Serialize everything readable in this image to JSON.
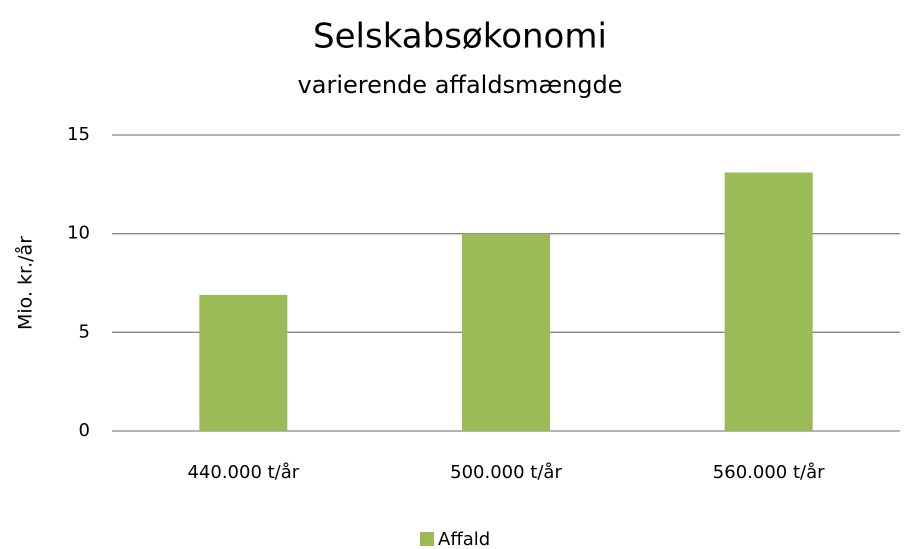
{
  "chart_data": {
    "type": "bar",
    "title": "Selskabsøkonomi",
    "subtitle": "varierende affaldsmængde",
    "y_label": "Mio. kr./år",
    "categories": [
      "440.000 t/år",
      "500.000 t/år",
      "560.000 t/år"
    ],
    "series": [
      {
        "name": "Affald",
        "color": "#9bbb59",
        "values": [
          6.9,
          10.0,
          13.1
        ]
      }
    ],
    "ylim": [
      0,
      15
    ],
    "yticks": [
      0,
      5,
      10,
      15
    ],
    "grid": true,
    "legend": "bottom"
  }
}
